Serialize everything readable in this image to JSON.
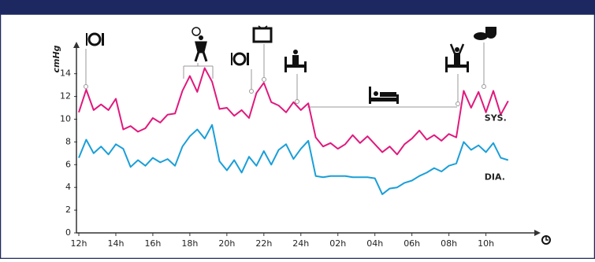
{
  "chart_data": {
    "type": "line",
    "y_label": "cmHg",
    "x": [
      0,
      0.4,
      0.8,
      1.2,
      1.6,
      2.0,
      2.4,
      2.8,
      3.2,
      3.6,
      4.0,
      4.4,
      4.8,
      5.2,
      5.6,
      6.0,
      6.4,
      6.8,
      7.2,
      7.6,
      8.0,
      8.4,
      8.8,
      9.2,
      9.6,
      10.0,
      10.4,
      10.8,
      11.2,
      11.6,
      12.0,
      12.4,
      12.8,
      13.2,
      13.6,
      14.0,
      14.4,
      14.8,
      15.2,
      15.6,
      16.0,
      16.4,
      16.8,
      17.2,
      17.6,
      18.0,
      18.4,
      18.8,
      19.2,
      19.6,
      20.0,
      20.4,
      20.8,
      21.2,
      21.6,
      22.0,
      22.4,
      22.8,
      23.2
    ],
    "series": [
      {
        "name": "SYS.",
        "color": "#e0197d",
        "values": [
          10.6,
          12.6,
          10.8,
          11.3,
          10.8,
          11.8,
          9.1,
          9.4,
          8.9,
          9.2,
          10.1,
          9.7,
          10.4,
          10.5,
          12.5,
          13.8,
          12.4,
          14.5,
          13.3,
          10.9,
          11,
          10.3,
          10.8,
          10.1,
          12.3,
          13.2,
          11.5,
          11.2,
          10.6,
          11.5,
          10.8,
          11.4,
          8.4,
          7.6,
          7.9,
          7.4,
          7.8,
          8.6,
          7.9,
          8.5,
          7.8,
          7.1,
          7.6,
          6.9,
          7.8,
          8.3,
          9,
          8.2,
          8.6,
          8.1,
          8.7,
          8.4,
          12.5,
          11,
          12.4,
          10.6,
          12.5,
          10.4,
          11.6
        ]
      },
      {
        "name": "DIA.",
        "color": "#1a9fd8",
        "values": [
          6.6,
          8.2,
          7,
          7.6,
          6.9,
          7.8,
          7.4,
          5.8,
          6.4,
          5.9,
          6.6,
          6.2,
          6.5,
          5.9,
          7.6,
          8.5,
          9.1,
          8.3,
          9.5,
          6.3,
          5.5,
          6.4,
          5.3,
          6.7,
          5.9,
          7.2,
          6,
          7.3,
          7.8,
          6.5,
          7.4,
          8.1,
          5,
          4.9,
          5,
          5,
          5,
          4.9,
          4.9,
          4.9,
          4.8,
          3.4,
          3.9,
          4,
          4.4,
          4.6,
          5,
          5.3,
          5.7,
          5.4,
          5.9,
          6.1,
          8,
          7.3,
          7.7,
          7.1,
          7.9,
          6.6,
          6.4
        ]
      }
    ],
    "xlim": [
      0,
      24.7
    ],
    "xticks": [
      {
        "value": 0,
        "label": "12h"
      },
      {
        "value": 2,
        "label": "14h"
      },
      {
        "value": 4,
        "label": "16h"
      },
      {
        "value": 6,
        "label": "18h"
      },
      {
        "value": 8,
        "label": "20h"
      },
      {
        "value": 10,
        "label": "22h"
      },
      {
        "value": 12,
        "label": "24h"
      },
      {
        "value": 14,
        "label": "02h"
      },
      {
        "value": 16,
        "label": "04h"
      },
      {
        "value": 18,
        "label": "06h"
      },
      {
        "value": 20,
        "label": "08h"
      },
      {
        "value": 22,
        "label": "10h"
      }
    ],
    "ylim": [
      0,
      16.4
    ],
    "yticks": [
      0,
      2,
      4,
      6,
      8,
      10,
      12,
      14
    ]
  }
}
